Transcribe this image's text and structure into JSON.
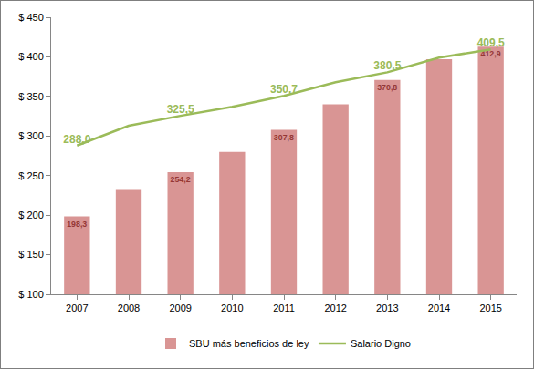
{
  "chart_data": {
    "type": "bar",
    "categories": [
      "2007",
      "2008",
      "2009",
      "2010",
      "2011",
      "2012",
      "2013",
      "2014",
      "2015"
    ],
    "series": [
      {
        "name": "SBU más beneficios de ley",
        "type": "bar",
        "color": "#d99594",
        "values": [
          198.3,
          233,
          254.2,
          280,
          307.8,
          340,
          370.8,
          397,
          412.9
        ],
        "value_labels": [
          "198,3",
          null,
          "254,2",
          null,
          "307,8",
          null,
          "370,8",
          null,
          "412,9"
        ]
      },
      {
        "name": "Salario Digno",
        "type": "line",
        "color": "#9bbb59",
        "values": [
          288.0,
          313,
          325.5,
          337,
          350.7,
          368,
          380.5,
          399,
          409.5
        ],
        "value_labels": [
          "288,0",
          null,
          "325,5",
          null,
          "350,7",
          null,
          "380,5",
          null,
          "409,5"
        ]
      }
    ],
    "ylim": [
      100,
      450
    ],
    "yticks": [
      {
        "value": 100,
        "label": "$ 100"
      },
      {
        "value": 150,
        "label": "$ 150"
      },
      {
        "value": 200,
        "label": "$ 200"
      },
      {
        "value": 250,
        "label": "$ 250"
      },
      {
        "value": 300,
        "label": "$ 300"
      },
      {
        "value": 350,
        "label": "$ 350"
      },
      {
        "value": 400,
        "label": "$ 400"
      },
      {
        "value": 450,
        "label": "$ 450"
      }
    ],
    "grid": false,
    "legend": "bottom",
    "data_labels": true
  }
}
